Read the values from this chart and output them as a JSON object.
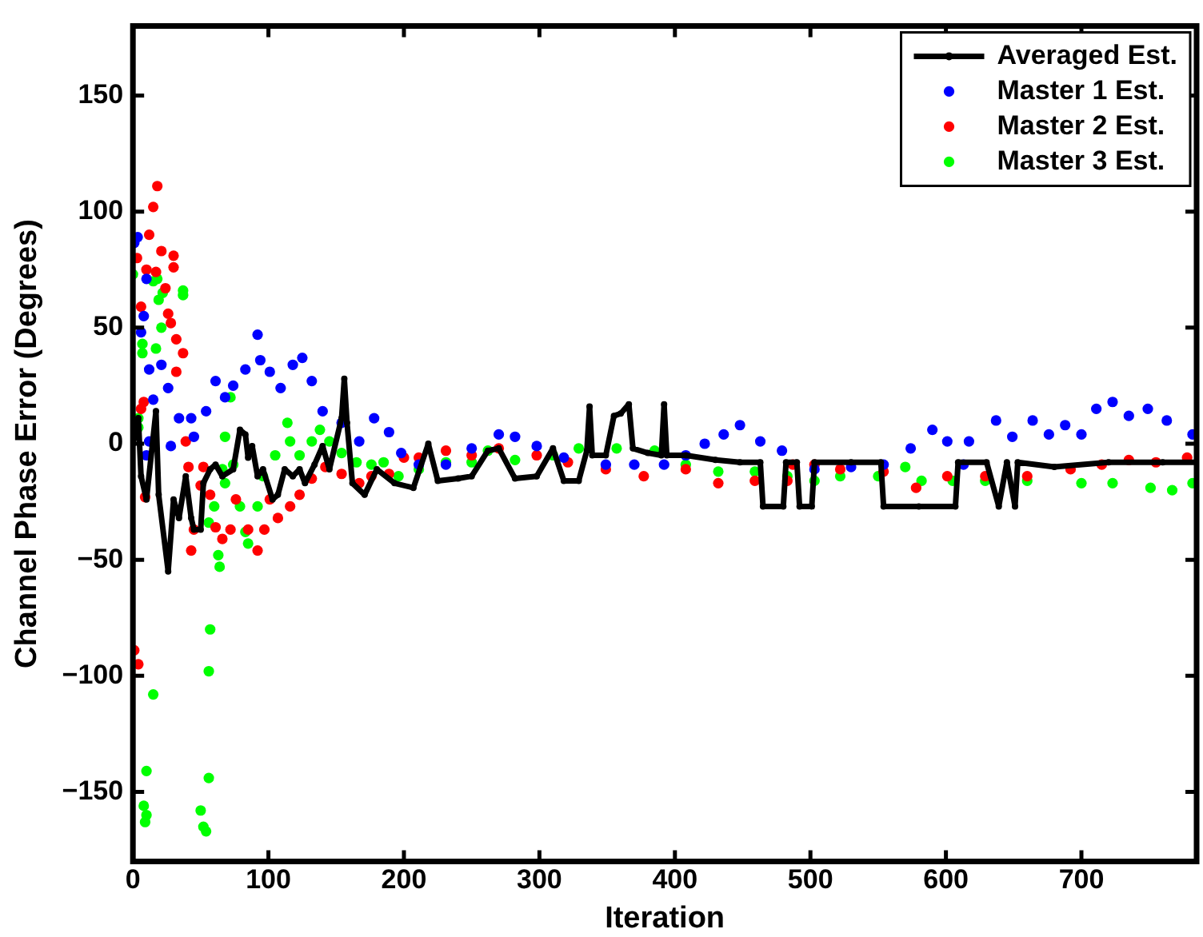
{
  "chart_data": {
    "type": "scatter",
    "xlabel": "Iteration",
    "ylabel": "Channel Phase Error (Degrees)",
    "xlim": [
      0,
      785
    ],
    "ylim": [
      -180,
      180
    ],
    "xticks": [
      0,
      100,
      200,
      300,
      400,
      500,
      600,
      700
    ],
    "yticks": [
      -150,
      -100,
      -50,
      0,
      50,
      100,
      150
    ],
    "grid": false,
    "legend": "top right",
    "marker": "circle",
    "series": [
      {
        "name": "Averaged Est.",
        "type": "line",
        "color": "#000000",
        "x": [
          0,
          4,
          6,
          10,
          17,
          19,
          26,
          30,
          34,
          39,
          43,
          45,
          50,
          52,
          57,
          61,
          66,
          74,
          79,
          83,
          85,
          88,
          92,
          96,
          103,
          107,
          112,
          118,
          123,
          127,
          134,
          140,
          145,
          154,
          156,
          158,
          162,
          171,
          180,
          193,
          207,
          218,
          225,
          240,
          250,
          262,
          270,
          282,
          298,
          310,
          318,
          329,
          335,
          337,
          339,
          349,
          355,
          360,
          366,
          369,
          380,
          390,
          392,
          394,
          408,
          430,
          448,
          463,
          465,
          480,
          482,
          490,
          492,
          501,
          503,
          530,
          552,
          554,
          580,
          607,
          609,
          630,
          639,
          645,
          651,
          653,
          680,
          720,
          760,
          785
        ],
        "values": [
          0,
          11,
          -14,
          -24,
          14,
          -22,
          -55,
          -24,
          -32,
          -14,
          -32,
          -37,
          -37,
          -17,
          -11,
          -9,
          -14,
          -11,
          6,
          4,
          -6,
          -1,
          -14,
          -11,
          -24,
          -22,
          -11,
          -14,
          -11,
          -17,
          -9,
          -1,
          -11,
          11,
          28,
          9,
          -17,
          -22,
          -11,
          -17,
          -19,
          0,
          -16,
          -15,
          -14,
          -3,
          -2,
          -15,
          -14,
          -2,
          -16,
          -16,
          -3,
          16,
          -5,
          -5,
          12,
          13,
          17,
          -2,
          -4,
          -5,
          17,
          -5,
          -5,
          -7,
          -8,
          -8,
          -27,
          -27,
          -8,
          -8,
          -27,
          -27,
          -8,
          -8,
          -8,
          -27,
          -27,
          -27,
          -8,
          -8,
          -27,
          -8,
          -27,
          -8,
          -10,
          -8,
          -8,
          -8
        ]
      },
      {
        "name": "Master 1 Est.",
        "color": "#0000ff",
        "x": [
          1,
          3.5,
          6,
          8,
          10,
          10,
          12,
          12,
          15,
          21,
          26,
          28,
          34,
          43,
          45,
          54,
          61,
          68,
          74,
          83,
          92,
          94,
          101,
          109,
          118,
          125,
          132,
          140,
          154,
          167,
          178,
          189,
          198,
          211,
          231,
          250,
          270,
          282,
          298,
          318,
          349,
          370,
          392,
          408,
          422,
          436,
          448,
          463,
          479,
          503,
          530,
          554,
          574,
          590,
          601,
          613,
          617,
          637,
          649,
          664,
          676,
          688,
          700,
          711,
          723,
          735,
          749,
          763,
          782
        ],
        "values": [
          86.5,
          89,
          48,
          55,
          71,
          -5,
          32,
          1,
          19,
          34,
          24,
          -1,
          11,
          11,
          3,
          14,
          27,
          20,
          25,
          32,
          47,
          36,
          31,
          24,
          34,
          37,
          27,
          14,
          9,
          1,
          11,
          5,
          -4,
          -9,
          -9,
          -2,
          4,
          3,
          -1,
          -6,
          -9,
          -9,
          -9,
          -5,
          0,
          4,
          8,
          1,
          -3,
          -11,
          -10,
          -9,
          -2,
          6,
          1,
          -9,
          1,
          10,
          3,
          10,
          4,
          8,
          4,
          15,
          18,
          12,
          15,
          10,
          4
        ]
      },
      {
        "name": "Master 2 Est.",
        "color": "#ff0000",
        "x": [
          1,
          4,
          3,
          6,
          10,
          12,
          15,
          18,
          8,
          6,
          9,
          17,
          21,
          24,
          26,
          30,
          30,
          28,
          32,
          37,
          32,
          39,
          41,
          45,
          43,
          50,
          52,
          57,
          61,
          66,
          72,
          76,
          85,
          92,
          97,
          101,
          107,
          116,
          123,
          132,
          142,
          154,
          167,
          176,
          189,
          200,
          211,
          231,
          250,
          270,
          298,
          321,
          349,
          377,
          408,
          432,
          459,
          483,
          487,
          503,
          522,
          554,
          578,
          601,
          629,
          660,
          692,
          715,
          735,
          755,
          778
        ],
        "values": [
          -89,
          -95,
          80,
          59,
          75,
          90,
          102,
          111,
          18,
          15,
          -23,
          74,
          83,
          67,
          56,
          81,
          76,
          52,
          45,
          39,
          31,
          1,
          -10,
          -37,
          -46,
          -18,
          -10,
          -22,
          -36,
          -41,
          -37,
          -24,
          -37,
          -46,
          -37,
          -24,
          -32,
          -27,
          -22,
          -15,
          -10,
          -13,
          -17,
          -14,
          -13,
          -6,
          -6,
          -3,
          -5,
          -2,
          -5,
          -8,
          -11,
          -14,
          -11,
          -17,
          -16,
          -16,
          -9,
          -9,
          -11,
          -12,
          -19,
          -14,
          -14,
          -14,
          -11,
          -9,
          -7,
          -8,
          -6
        ]
      },
      {
        "name": "Master 3 Est.",
        "color": "#00ff00",
        "x": [
          0,
          4,
          4,
          7,
          7,
          15,
          18,
          19,
          21,
          22,
          17,
          37,
          37,
          15,
          10,
          8,
          10,
          9,
          50,
          52,
          54,
          56,
          56,
          57,
          56,
          60,
          63,
          64,
          72,
          68,
          66,
          68,
          74,
          79,
          83,
          85,
          92,
          96,
          105,
          114,
          116,
          123,
          132,
          138,
          145,
          154,
          165,
          176,
          185,
          196,
          211,
          231,
          250,
          262,
          282,
          310,
          329,
          357,
          385,
          408,
          432,
          459,
          483,
          503,
          522,
          550,
          570,
          582,
          605,
          629,
          660,
          700,
          723,
          751,
          767,
          782
        ],
        "values": [
          73,
          11,
          7,
          43,
          39,
          70,
          71,
          62,
          50,
          65,
          41,
          66,
          64,
          -108,
          -141,
          -156,
          -160,
          -163,
          -158,
          -165,
          -167,
          -144,
          -98,
          -80,
          -34,
          -27,
          -48,
          -53,
          20,
          3,
          -11,
          -17,
          -9,
          -27,
          -38,
          -43,
          -27,
          -14,
          -5,
          9,
          1,
          -5,
          1,
          6,
          1,
          -4,
          -8,
          -9,
          -8,
          -14,
          -11,
          -8,
          -8,
          -3,
          -7,
          -5,
          -2,
          -2,
          -3,
          -9,
          -12,
          -12,
          -14,
          -16,
          -14,
          -14,
          -10,
          -16,
          -16,
          -16,
          -16,
          -17,
          -17,
          -19,
          -20,
          -17
        ]
      }
    ]
  }
}
